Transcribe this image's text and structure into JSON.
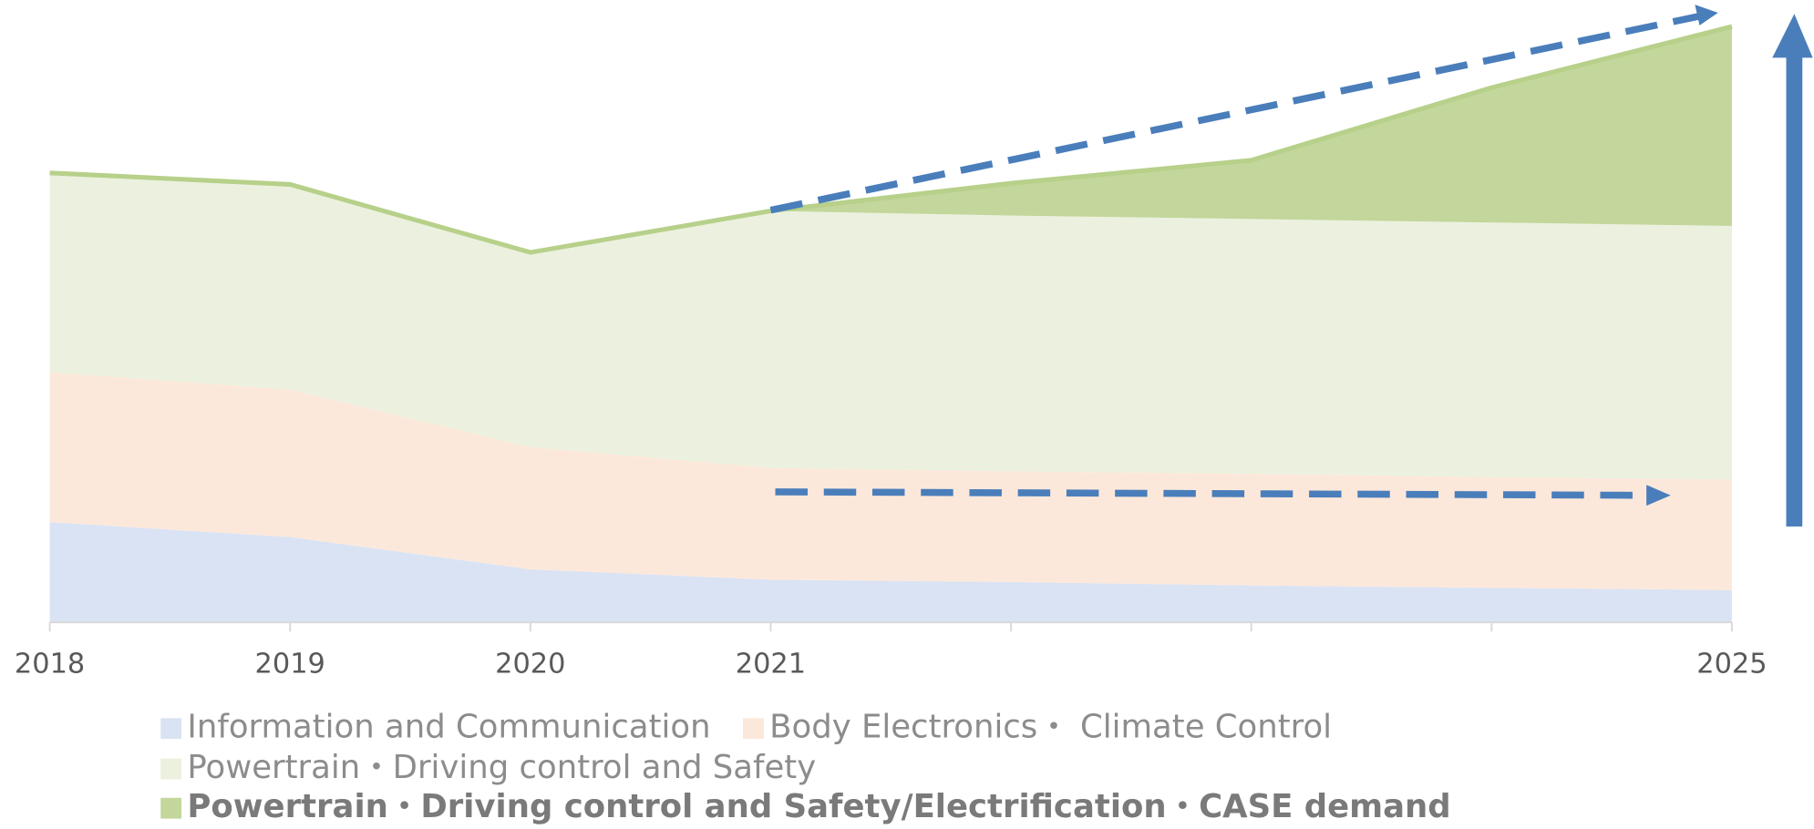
{
  "chart_data": {
    "type": "stacked_area",
    "categories": [
      "2018",
      "2019",
      "2020",
      "2021",
      null,
      null,
      null,
      "2025"
    ],
    "ylim": [
      0,
      520
    ],
    "series": [
      {
        "name": "Information and Communication",
        "color": "#dae3f3",
        "values": [
          87,
          74,
          46,
          37,
          35,
          32,
          30,
          28
        ]
      },
      {
        "name": "Body Electronics・ Climate Control",
        "color": "#fce8db",
        "values": [
          130,
          128,
          106,
          97,
          96,
          97,
          96,
          96
        ]
      },
      {
        "name": "Powertrain・Driving control and Safety",
        "color": "#ebf1de",
        "values": [
          173,
          178,
          169,
          223,
          222,
          221,
          221,
          220
        ]
      },
      {
        "name": "Powertrain・Driving control and Safety/Electrification・CASE demand",
        "color": "#c3d69b",
        "values": [
          0,
          0,
          0,
          0,
          28,
          51,
          117,
          173
        ]
      }
    ]
  }
}
